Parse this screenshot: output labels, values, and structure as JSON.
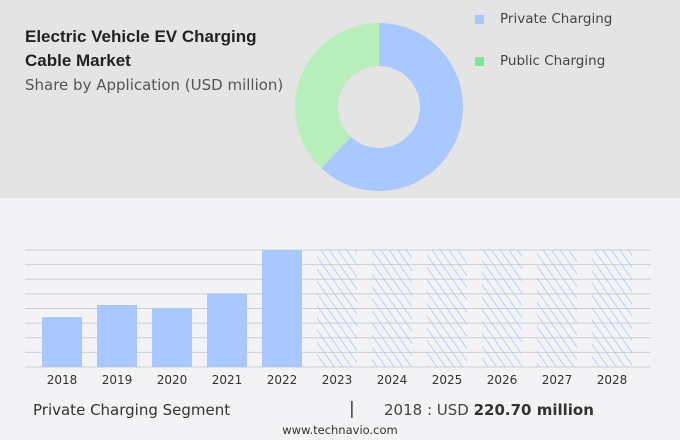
{
  "header": {
    "title": "Electric Vehicle EV Charging Cable Market",
    "subtitle": "Share by Application (USD million)"
  },
  "legend": [
    {
      "label": "Private Charging",
      "color": "#a8c8ff"
    },
    {
      "label": "Public Charging",
      "color": "#7fe39a"
    }
  ],
  "chart_data": [
    {
      "type": "pie",
      "variant": "donut",
      "series": [
        {
          "name": "Private Charging",
          "value": 62,
          "color": "#a8c8ff"
        },
        {
          "name": "Public Charging",
          "value": 38,
          "color": "#b8eebb"
        }
      ],
      "legend_placement": "right"
    },
    {
      "type": "bar",
      "categories": [
        "2018",
        "2019",
        "2020",
        "2021",
        "2022",
        "2023",
        "2024",
        "2025",
        "2026",
        "2027",
        "2028"
      ],
      "values": [
        220.7,
        274,
        259,
        325,
        517,
        null,
        null,
        null,
        null,
        null,
        null
      ],
      "forecast_categories": [
        "2023",
        "2024",
        "2025",
        "2026",
        "2027",
        "2028"
      ],
      "forecast_style": "hatched",
      "color": "#a8c8ff",
      "grid": true,
      "ylim": [
        0,
        517
      ]
    }
  ],
  "footer": {
    "segment": "Private Charging Segment",
    "separator": "|",
    "year_label": "2018 : USD",
    "value": "220.70 million",
    "source": "www.technavio.com"
  }
}
